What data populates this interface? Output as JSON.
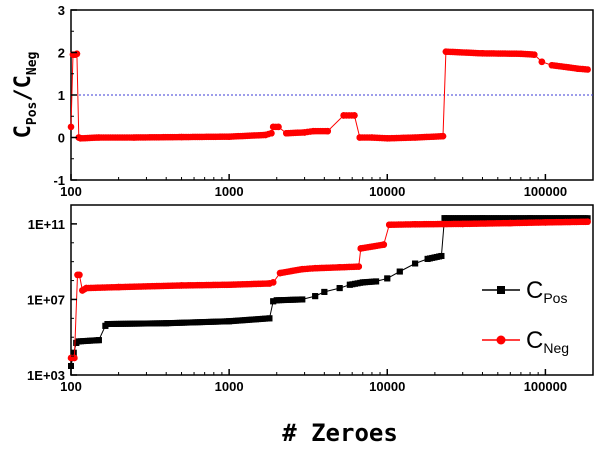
{
  "chart_data": [
    {
      "type": "line",
      "panel": "top",
      "ylabel": {
        "main1": "C",
        "sub1": "Pos",
        "slash": "/",
        "main2": "C",
        "sub2": "Neg"
      },
      "xscale": "log",
      "xlim": [
        100,
        200000
      ],
      "ylim": [
        -1,
        3
      ],
      "xticks": [
        100,
        1000,
        10000,
        100000
      ],
      "xtick_labels": [
        "100",
        "1000",
        "10000",
        "100000"
      ],
      "yticks": [
        -1,
        0,
        1,
        2,
        3
      ],
      "ytick_labels": [
        "-1",
        "0",
        "1",
        "2",
        "3"
      ],
      "reference_line": {
        "y": 1,
        "style": "dotted",
        "color": "#3b3bd6"
      },
      "series": [
        {
          "color": "#ff0000",
          "marker": "circle",
          "x": [
            100,
            103,
            106,
            109,
            112,
            115,
            150,
            250,
            500,
            1000,
            1700,
            1850,
            1900,
            2050,
            2300,
            3000,
            3400,
            4200,
            5300,
            6200,
            6700,
            8000,
            10000,
            15000,
            22500,
            23500,
            40000,
            70000,
            85000,
            95000,
            110000,
            140000,
            160000,
            185000
          ],
          "y": [
            0.25,
            1.95,
            1.95,
            1.97,
            0.0,
            -0.02,
            0.0,
            0.0,
            0.01,
            0.02,
            0.06,
            0.1,
            0.25,
            0.25,
            0.1,
            0.12,
            0.15,
            0.15,
            0.52,
            0.52,
            0.0,
            0.0,
            -0.02,
            0.0,
            0.03,
            2.02,
            1.98,
            1.97,
            1.95,
            1.78,
            1.7,
            1.65,
            1.62,
            1.6
          ]
        }
      ]
    },
    {
      "type": "line",
      "panel": "bottom",
      "xlabel": "# Zeroes",
      "xscale": "log",
      "yscale": "log",
      "xlim": [
        100,
        200000
      ],
      "ylim": [
        1000,
        1000000000000
      ],
      "xticks": [
        100,
        1000,
        10000,
        100000
      ],
      "xtick_labels": [
        "100",
        "1000",
        "10000",
        "100000"
      ],
      "yticks": [
        1000,
        10000000,
        100000000000
      ],
      "ytick_labels": [
        "1E+03",
        "1E+07",
        "1E+11"
      ],
      "legend": {
        "position": "right",
        "entries": [
          {
            "main": "C",
            "sub": "Pos",
            "color": "#000000",
            "marker": "square"
          },
          {
            "main": "C",
            "sub": "Neg",
            "color": "#ff0000",
            "marker": "circle"
          }
        ]
      },
      "series": [
        {
          "legend_index": 0,
          "color": "#000000",
          "marker": "square",
          "x": [
            100,
            104,
            108,
            112,
            150,
            165,
            170,
            400,
            1000,
            1800,
            1900,
            2000,
            2900,
            3500,
            4000,
            5000,
            5800,
            7000,
            8500,
            10000,
            12000,
            15000,
            18000,
            22000,
            23000,
            40000,
            80000,
            185000
          ],
          "y": [
            3000,
            15000,
            50000,
            60000,
            70000,
            400000,
            500000,
            550000,
            700000,
            1000000,
            8000000,
            9000000,
            10000000,
            15000000,
            25000000,
            40000000,
            60000000,
            80000000,
            90000000,
            130000000,
            300000000,
            800000000,
            1400000000,
            2000000000,
            200000000000,
            200000000000,
            200000000000,
            200000000000
          ]
        },
        {
          "legend_index": 1,
          "color": "#ff0000",
          "marker": "circle",
          "x": [
            100,
            105,
            110,
            113,
            118,
            125,
            200,
            500,
            1000,
            1800,
            1900,
            2100,
            2900,
            3500,
            5000,
            6600,
            6800,
            9500,
            10300,
            15000,
            30000,
            60000,
            100000,
            185000
          ],
          "y": [
            8000,
            8000,
            200000000,
            200000000,
            30000000,
            40000000,
            45000000,
            55000000,
            60000000,
            70000000,
            80000000,
            250000000,
            400000000,
            450000000,
            500000000,
            550000000,
            5000000000,
            8000000000,
            90000000000,
            95000000000,
            100000000000,
            110000000000,
            120000000000,
            130000000000
          ]
        }
      ]
    }
  ]
}
